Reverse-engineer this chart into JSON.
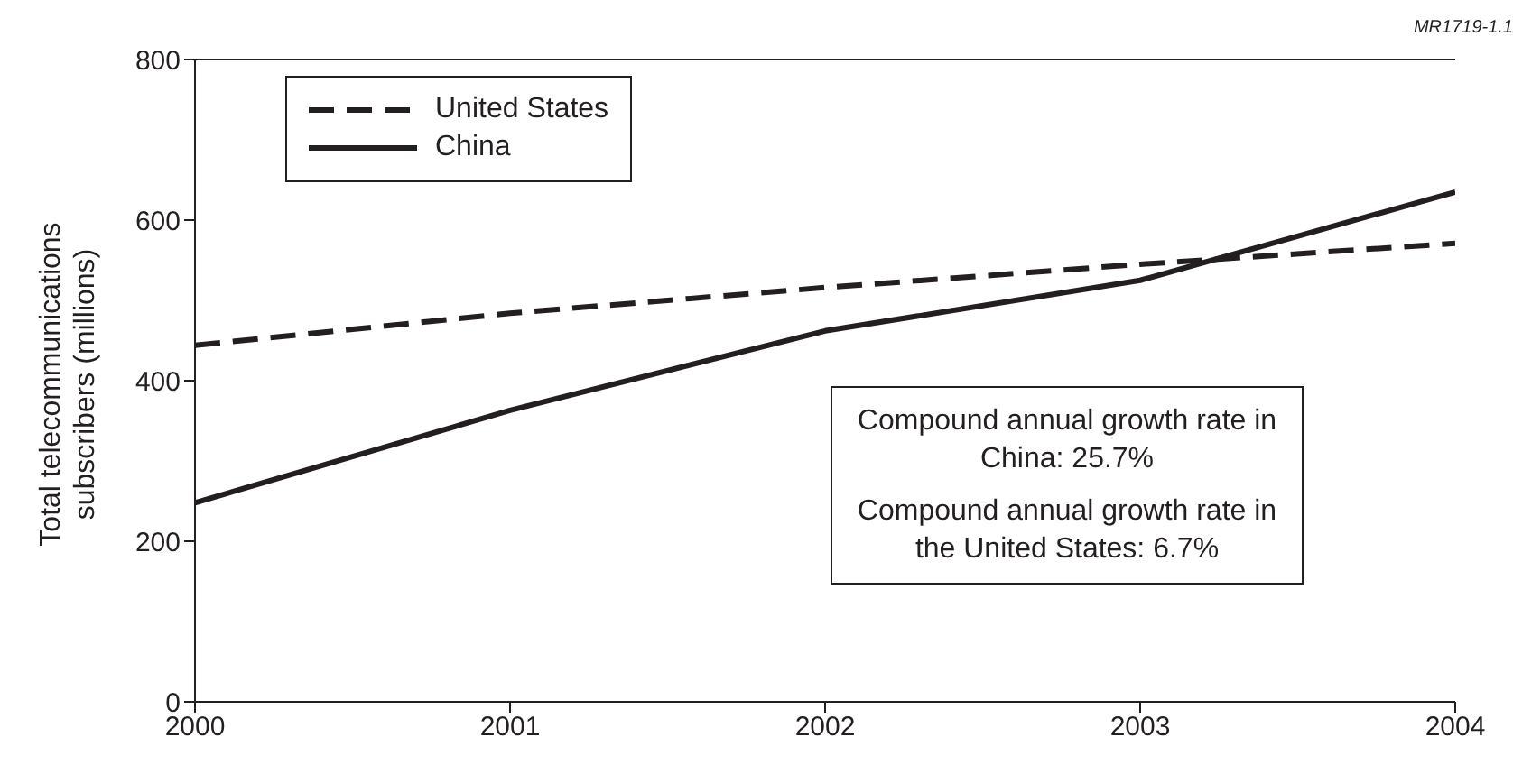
{
  "chart_data": {
    "type": "line",
    "ylabel": "Total telecommunications subscribers (millions)",
    "x": [
      2000,
      2001,
      2002,
      2003,
      2004
    ],
    "series": [
      {
        "name": "United States",
        "color": "#231f20",
        "line_style": "dashed",
        "values": [
          444,
          484,
          516,
          545,
          571
        ]
      },
      {
        "name": "China",
        "color": "#231f20",
        "line_style": "solid",
        "values": [
          248,
          363,
          462,
          525,
          635
        ]
      }
    ],
    "xlim": [
      2000,
      2004
    ],
    "xticks": [
      2000,
      2001,
      2002,
      2003,
      2004
    ],
    "ylim": [
      0,
      800
    ],
    "yticks": [
      0,
      200,
      400,
      600,
      800
    ],
    "grid": false,
    "legend": "top left",
    "marker": "none",
    "annotations": [
      "Compound annual growth rate in China: 25.7%",
      "Compound annual growth rate in the United States: 6.7%",
      "MR1719-1.1"
    ]
  }
}
